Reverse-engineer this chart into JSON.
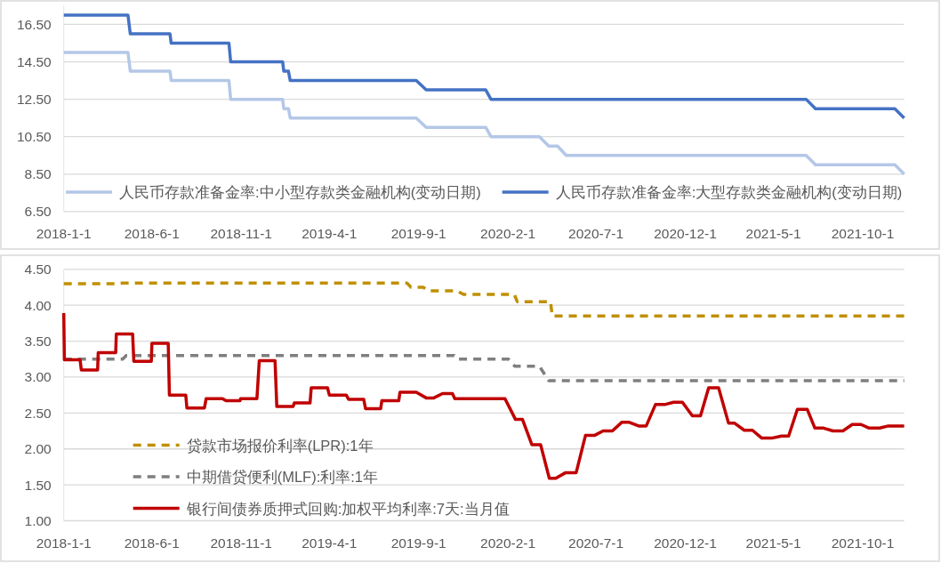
{
  "chart_data": [
    {
      "type": "line",
      "xlim": [
        "2018-01-01",
        "2021-12-11"
      ],
      "ylim": [
        6.5,
        17.5
      ],
      "xticks": [
        {
          "value": "2018-01-01",
          "label": "2018-1-1"
        },
        {
          "value": "2018-06-01",
          "label": "2018-6-1"
        },
        {
          "value": "2018-11-01",
          "label": "2018-11-1"
        },
        {
          "value": "2019-04-01",
          "label": "2019-4-1"
        },
        {
          "value": "2019-09-01",
          "label": "2019-9-1"
        },
        {
          "value": "2020-02-01",
          "label": "2020-2-1"
        },
        {
          "value": "2020-07-01",
          "label": "2020-7-1"
        },
        {
          "value": "2020-12-01",
          "label": "2020-12-1"
        },
        {
          "value": "2021-05-01",
          "label": "2021-5-1"
        },
        {
          "value": "2021-10-01",
          "label": "2021-10-1"
        }
      ],
      "yticks": [
        {
          "value": 6.5,
          "label": "6.50"
        },
        {
          "value": 8.5,
          "label": "8.50"
        },
        {
          "value": 10.5,
          "label": "10.50"
        },
        {
          "value": 12.5,
          "label": "12.50"
        },
        {
          "value": 14.5,
          "label": "14.50"
        },
        {
          "value": 16.5,
          "label": "16.50"
        }
      ],
      "grid": "y",
      "legend": "bottom",
      "line_style": "solid",
      "series": [
        {
          "name": "人民币存款准备金率:中小型存款类金融机构(变动日期)",
          "color": "#b4c7e7",
          "x": [
            "2018-01-01",
            "2018-04-21",
            "2018-04-25",
            "2018-07-02",
            "2018-07-04",
            "2018-10-11",
            "2018-10-14",
            "2019-01-11",
            "2019-01-13",
            "2019-01-21",
            "2019-01-24",
            "2019-08-28",
            "2019-09-14",
            "2019-12-25",
            "2020-01-03",
            "2020-03-26",
            "2020-04-11",
            "2020-04-26",
            "2020-05-11",
            "2021-06-26",
            "2021-07-12",
            "2021-11-25",
            "2021-12-11"
          ],
          "values": [
            15.0,
            15.0,
            14.0,
            14.0,
            13.5,
            13.5,
            12.5,
            12.5,
            12.0,
            12.0,
            11.5,
            11.5,
            11.0,
            11.0,
            10.5,
            10.5,
            10.0,
            10.0,
            9.5,
            9.5,
            9.0,
            9.0,
            8.5
          ]
        },
        {
          "name": "人民币存款准备金率:大型存款类金融机构(变动日期)",
          "color": "#4472c4",
          "x": [
            "2018-01-01",
            "2018-04-21",
            "2018-04-25",
            "2018-07-02",
            "2018-07-04",
            "2018-10-11",
            "2018-10-14",
            "2019-01-11",
            "2019-01-13",
            "2019-01-21",
            "2019-01-24",
            "2019-08-28",
            "2019-09-14",
            "2019-12-25",
            "2020-01-03",
            "2021-06-26",
            "2021-07-12",
            "2021-11-25",
            "2021-12-11"
          ],
          "values": [
            17.0,
            17.0,
            16.0,
            16.0,
            15.5,
            15.5,
            14.5,
            14.5,
            14.0,
            14.0,
            13.5,
            13.5,
            13.0,
            13.0,
            12.5,
            12.5,
            12.0,
            12.0,
            11.5
          ]
        }
      ]
    },
    {
      "type": "line",
      "xlim": [
        "2018-01-01",
        "2021-12-11"
      ],
      "ylim": [
        1,
        4.5
      ],
      "xticks": [
        {
          "value": "2018-01-01",
          "label": "2018-1-1"
        },
        {
          "value": "2018-06-01",
          "label": "2018-6-1"
        },
        {
          "value": "2018-11-01",
          "label": "2018-11-1"
        },
        {
          "value": "2019-04-01",
          "label": "2019-4-1"
        },
        {
          "value": "2019-09-01",
          "label": "2019-9-1"
        },
        {
          "value": "2020-02-01",
          "label": "2020-2-1"
        },
        {
          "value": "2020-07-01",
          "label": "2020-7-1"
        },
        {
          "value": "2020-12-01",
          "label": "2020-12-1"
        },
        {
          "value": "2021-05-01",
          "label": "2021-5-1"
        },
        {
          "value": "2021-10-01",
          "label": "2021-10-1"
        }
      ],
      "yticks": [
        {
          "value": 1,
          "label": "1.00"
        },
        {
          "value": 1.5,
          "label": "1.50"
        },
        {
          "value": 2,
          "label": "2.00"
        },
        {
          "value": 2.5,
          "label": "2.50"
        },
        {
          "value": 3,
          "label": "3.00"
        },
        {
          "value": 3.5,
          "label": "3.50"
        },
        {
          "value": 4,
          "label": "4.00"
        },
        {
          "value": 4.5,
          "label": "4.50"
        }
      ],
      "grid": "y",
      "legend": "bottom left",
      "series": [
        {
          "name": "贷款市场报价利率(LPR):1年",
          "color": "#bf9000",
          "line_style": "dashed",
          "x": [
            "2018-01-01",
            "2018-04-01",
            "2018-04-12",
            "2019-08-12",
            "2019-08-19",
            "2019-09-09",
            "2019-09-18",
            "2019-11-06",
            "2019-11-17",
            "2020-02-12",
            "2020-02-17",
            "2020-04-14",
            "2020-04-17",
            "2021-12-11"
          ],
          "values": [
            4.3,
            4.3,
            4.31,
            4.31,
            4.25,
            4.25,
            4.2,
            4.2,
            4.15,
            4.15,
            4.05,
            4.05,
            3.85,
            3.85
          ]
        },
        {
          "name": "中期借贷便利(MLF):利率:1年",
          "color": "#7f7f7f",
          "line_style": "dashed",
          "x": [
            "2018-01-01",
            "2018-04-12",
            "2018-04-18",
            "2019-11-01",
            "2019-11-06",
            "2020-02-02",
            "2020-02-13",
            "2020-03-26",
            "2020-04-11",
            "2021-12-11"
          ],
          "values": [
            3.25,
            3.25,
            3.3,
            3.3,
            3.25,
            3.25,
            3.15,
            3.15,
            2.95,
            2.95
          ]
        },
        {
          "name": "银行间债券质押式回购:加权平均利率:7天:当月值",
          "color": "#c00000",
          "line_style": "solid",
          "x": [
            "2018-01-01",
            "2018-01-02",
            "2018-01-29",
            "2018-01-31",
            "2018-02-28",
            "2018-03-01",
            "2018-03-31",
            "2018-04-01",
            "2018-04-29",
            "2018-05-01",
            "2018-05-31",
            "2018-06-01",
            "2018-06-29",
            "2018-07-01",
            "2018-07-29",
            "2018-07-31",
            "2018-08-30",
            "2018-09-02",
            "2018-09-30",
            "2018-10-06",
            "2018-10-30",
            "2018-10-31",
            "2018-11-28",
            "2018-12-02",
            "2018-12-29",
            "2019-01-01",
            "2019-01-29",
            "2019-01-31",
            "2019-02-27",
            "2019-03-01",
            "2019-03-29",
            "2019-04-01",
            "2019-04-30",
            "2019-05-04",
            "2019-05-30",
            "2019-06-02",
            "2019-06-28",
            "2019-06-30",
            "2019-07-29",
            "2019-07-31",
            "2019-08-28",
            "2019-09-14",
            "2019-09-27",
            "2019-10-12",
            "2019-10-29",
            "2019-11-02",
            "2020-01-27",
            "2020-02-14",
            "2020-02-26",
            "2020-03-13",
            "2020-03-28",
            "2020-04-12",
            "2020-04-23",
            "2020-05-10",
            "2020-05-28",
            "2020-06-13",
            "2020-06-29",
            "2020-07-13",
            "2020-07-29",
            "2020-08-14",
            "2020-08-27",
            "2020-09-12",
            "2020-09-25",
            "2020-10-11",
            "2020-10-28",
            "2020-11-11",
            "2020-11-26",
            "2020-12-13",
            "2020-12-27",
            "2021-01-10",
            "2021-01-27",
            "2021-02-13",
            "2021-02-23",
            "2021-03-12",
            "2021-03-26",
            "2021-04-11",
            "2021-04-28",
            "2021-05-15",
            "2021-05-27",
            "2021-06-11",
            "2021-06-28",
            "2021-07-11",
            "2021-07-26",
            "2021-08-11",
            "2021-08-28",
            "2021-09-13",
            "2021-09-28",
            "2021-10-12",
            "2021-10-30",
            "2021-11-14",
            "2021-12-11"
          ],
          "values": [
            3.89,
            3.24,
            3.24,
            3.1,
            3.1,
            3.34,
            3.34,
            3.6,
            3.6,
            3.22,
            3.22,
            3.47,
            3.47,
            2.75,
            2.75,
            2.57,
            2.57,
            2.7,
            2.7,
            2.67,
            2.67,
            2.7,
            2.7,
            3.23,
            3.23,
            2.59,
            2.59,
            2.64,
            2.64,
            2.85,
            2.85,
            2.75,
            2.75,
            2.69,
            2.69,
            2.56,
            2.56,
            2.67,
            2.67,
            2.79,
            2.79,
            2.71,
            2.71,
            2.77,
            2.77,
            2.7,
            2.7,
            2.41,
            2.41,
            2.06,
            2.06,
            1.59,
            1.59,
            1.67,
            1.67,
            2.19,
            2.19,
            2.25,
            2.25,
            2.37,
            2.37,
            2.32,
            2.32,
            2.62,
            2.62,
            2.65,
            2.65,
            2.46,
            2.46,
            2.85,
            2.85,
            2.36,
            2.36,
            2.26,
            2.26,
            2.15,
            2.15,
            2.18,
            2.18,
            2.55,
            2.55,
            2.29,
            2.29,
            2.25,
            2.25,
            2.34,
            2.34,
            2.29,
            2.29,
            2.32,
            2.32
          ]
        }
      ]
    }
  ]
}
